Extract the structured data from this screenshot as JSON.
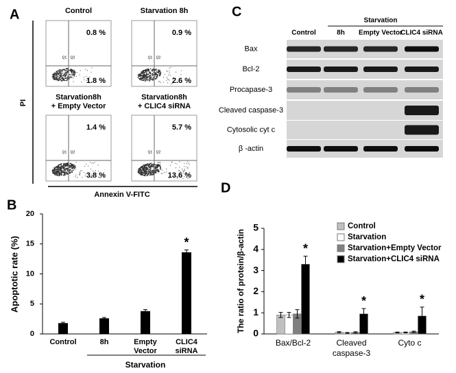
{
  "panel_a": {
    "label": "A",
    "y_axis_label": "PI",
    "x_axis_label": "Annexin V-FITC",
    "quadrants": [
      "Q1",
      "Q2",
      "Q4"
    ],
    "plots": [
      {
        "title": "Control",
        "upper_right": "0.8 %",
        "lower_right": "1.8 %"
      },
      {
        "title": "Starvation 8h",
        "upper_right": "0.9 %",
        "lower_right": "2.6 %"
      },
      {
        "title": "Starvation8h\n+ Empty Vector",
        "upper_right": "1.4 %",
        "lower_right": "3.8 %"
      },
      {
        "title": "Starvation8h\n+ CLIC4 siRNA",
        "upper_right": "5.7 %",
        "lower_right": "13.6 %"
      }
    ]
  },
  "panel_c": {
    "label": "C",
    "group_label": "Starvation",
    "columns": [
      "Control",
      "8h",
      "Empty Vector",
      "CLIC4 siRNA"
    ],
    "rows": [
      "Bax",
      "Bcl-2",
      "Procapase-3",
      "Cleaved caspase-3",
      "Cytosolic cyt c",
      "β -actin"
    ]
  },
  "chart_data": [
    {
      "type": "bar",
      "label": "B",
      "y_label": "Apoptotic rate (%)",
      "categories": [
        "Control",
        "8h",
        "Empty\nVector",
        "CLIC4\nsiRNA"
      ],
      "values": [
        1.8,
        2.6,
        3.8,
        13.6
      ],
      "errors": [
        0.15,
        0.15,
        0.25,
        0.4
      ],
      "significant": [
        false,
        false,
        false,
        true
      ],
      "significance_marker": "*",
      "group_label": "Starvation",
      "color": "#000000",
      "ylim": [
        0,
        20
      ],
      "yticks": [
        0,
        5,
        10,
        15,
        20
      ]
    },
    {
      "type": "grouped_bar",
      "label": "D",
      "y_label": "The ratio of protein/β-actin",
      "categories": [
        "Bax/Bcl-2",
        "Cleaved\ncaspase-3",
        "Cyto c"
      ],
      "series": [
        {
          "name": "Control",
          "color": "#c0c0c0",
          "values": [
            0.9,
            0.08,
            0.07
          ],
          "errors": [
            0.12,
            0.03,
            0.02
          ],
          "significant": [
            false,
            false,
            false
          ]
        },
        {
          "name": "Starvation",
          "color": "#ffffff",
          "values": [
            0.9,
            0.05,
            0.07
          ],
          "errors": [
            0.12,
            0.02,
            0.02
          ],
          "significant": [
            false,
            false,
            false
          ]
        },
        {
          "name": "Starvation+Empty Vector",
          "color": "#808080",
          "values": [
            0.95,
            0.07,
            0.1
          ],
          "errors": [
            0.2,
            0.03,
            0.03
          ],
          "significant": [
            false,
            false,
            false
          ]
        },
        {
          "name": "Starvation+CLIC4 siRNA",
          "color": "#000000",
          "values": [
            3.3,
            0.95,
            0.85
          ],
          "errors": [
            0.38,
            0.25,
            0.42
          ],
          "significant": [
            true,
            true,
            true
          ]
        }
      ],
      "significance_marker": "*",
      "ylim": [
        0,
        5
      ],
      "yticks": [
        0,
        1,
        2,
        3,
        4,
        5
      ]
    }
  ]
}
